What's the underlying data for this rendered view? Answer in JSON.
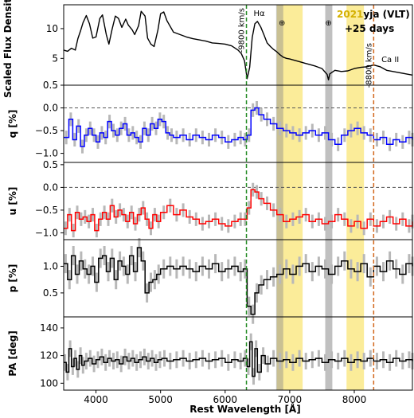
{
  "chart_data": {
    "type": "line",
    "title_prefix": "2021",
    "title_rest": "yja (VLT)",
    "subtitle": "+25 days",
    "xlabel": "Rest Wavelength [Å]",
    "xlim": [
      3500,
      8900
    ],
    "xticks": [
      4000,
      5000,
      6000,
      7000,
      8000
    ],
    "vlines": [
      {
        "x": 6330,
        "color": "#228b22",
        "label": "-9800 km/s"
      },
      {
        "x": 8300,
        "color": "#d2691e",
        "label": "-8800 km/s"
      }
    ],
    "line_labels": [
      {
        "x": 6440,
        "text": "Hα"
      },
      {
        "x": 8420,
        "text": "Ca II"
      }
    ],
    "telluric_symbols": [
      {
        "x": 6880,
        "text": "⊕"
      },
      {
        "x": 7600,
        "text": "⊕"
      }
    ],
    "bands": [
      {
        "x0": 6800,
        "x1": 7200,
        "color": "#f5d000",
        "opacity": 0.4
      },
      {
        "x0": 6790,
        "x1": 6900,
        "color": "#8c8c8c",
        "opacity": 0.45
      },
      {
        "x0": 7550,
        "x1": 7660,
        "color": "#8c8c8c",
        "opacity": 0.55
      },
      {
        "x0": 7880,
        "x1": 8150,
        "color": "#f5d000",
        "opacity": 0.4
      }
    ],
    "panels": [
      {
        "key": "flux",
        "ylabel": "Scaled Flux Density",
        "ylim": [
          0.5,
          14
        ],
        "yticks": [
          5,
          10
        ],
        "yticklabels": [
          "5",
          "10"
        ],
        "color": "#000000",
        "errbars": false,
        "x": [
          3500,
          3560,
          3620,
          3680,
          3720,
          3760,
          3800,
          3850,
          3900,
          3950,
          4000,
          4060,
          4100,
          4160,
          4200,
          4250,
          4300,
          4350,
          4400,
          4460,
          4500,
          4560,
          4600,
          4660,
          4700,
          4760,
          4800,
          4850,
          4900,
          4960,
          5000,
          5050,
          5100,
          5200,
          5300,
          5400,
          5500,
          5600,
          5700,
          5800,
          5900,
          6000,
          6100,
          6200,
          6250,
          6300,
          6340,
          6380,
          6420,
          6460,
          6500,
          6550,
          6600,
          6650,
          6700,
          6750,
          6800,
          6850,
          6900,
          6950,
          7000,
          7100,
          7200,
          7300,
          7400,
          7500,
          7580,
          7600,
          7620,
          7700,
          7800,
          7900,
          8000,
          8100,
          8200,
          8300,
          8400,
          8500,
          8600,
          8700,
          8800,
          8900
        ],
        "y": [
          6.4,
          6.2,
          6.7,
          6.4,
          8.3,
          9.6,
          11.0,
          12.2,
          10.8,
          8.4,
          8.6,
          11.7,
          12.3,
          9.0,
          7.4,
          9.9,
          12.1,
          11.7,
          10.2,
          11.6,
          10.6,
          9.8,
          9.0,
          10.5,
          12.9,
          12.1,
          8.4,
          7.4,
          7.0,
          9.8,
          12.5,
          12.8,
          11.3,
          9.4,
          9.0,
          8.6,
          8.3,
          8.1,
          7.9,
          7.6,
          7.5,
          7.4,
          7.1,
          6.4,
          5.8,
          4.6,
          1.6,
          3.5,
          8.5,
          10.8,
          11.2,
          10.3,
          9.0,
          7.6,
          7.0,
          6.5,
          6.1,
          5.6,
          5.2,
          5.0,
          4.9,
          4.6,
          4.3,
          4.0,
          3.7,
          3.3,
          2.3,
          1.4,
          2.4,
          3.0,
          2.8,
          2.9,
          3.3,
          3.5,
          3.6,
          3.9,
          3.6,
          3.0,
          2.8,
          2.6,
          2.4,
          2.2
        ]
      },
      {
        "key": "q",
        "ylabel": "q [%]",
        "ylim": [
          -1.2,
          0.5
        ],
        "yticks": [
          -1.0,
          -0.5,
          0.0,
          0.5
        ],
        "yticklabels": [
          "−1.0",
          "−0.5",
          "0.0",
          "0.5"
        ],
        "color": "#0000ff",
        "errbars": true,
        "dashed_y": 0.0,
        "x": [
          3500,
          3580,
          3640,
          3700,
          3760,
          3820,
          3880,
          3940,
          4000,
          4060,
          4120,
          4180,
          4240,
          4300,
          4360,
          4420,
          4480,
          4540,
          4600,
          4660,
          4720,
          4780,
          4840,
          4900,
          4960,
          5020,
          5080,
          5140,
          5200,
          5300,
          5400,
          5500,
          5600,
          5700,
          5800,
          5900,
          6000,
          6100,
          6200,
          6280,
          6340,
          6400,
          6460,
          6520,
          6600,
          6700,
          6800,
          6900,
          7000,
          7100,
          7200,
          7300,
          7400,
          7500,
          7600,
          7700,
          7800,
          7900,
          8000,
          8100,
          8200,
          8300,
          8400,
          8500,
          8600,
          8700,
          8800,
          8900
        ],
        "y": [
          -0.65,
          -0.25,
          -0.7,
          -0.4,
          -0.85,
          -0.6,
          -0.45,
          -0.6,
          -0.75,
          -0.55,
          -0.65,
          -0.3,
          -0.5,
          -0.6,
          -0.45,
          -0.35,
          -0.6,
          -0.55,
          -0.65,
          -0.75,
          -0.45,
          -0.6,
          -0.35,
          -0.45,
          -0.25,
          -0.3,
          -0.55,
          -0.6,
          -0.65,
          -0.6,
          -0.7,
          -0.6,
          -0.65,
          -0.7,
          -0.6,
          -0.65,
          -0.75,
          -0.7,
          -0.65,
          -0.7,
          -0.6,
          -0.05,
          0.0,
          -0.15,
          -0.25,
          -0.35,
          -0.45,
          -0.5,
          -0.55,
          -0.6,
          -0.55,
          -0.5,
          -0.6,
          -0.55,
          -0.7,
          -0.8,
          -0.6,
          -0.5,
          -0.45,
          -0.55,
          -0.6,
          -0.7,
          -0.65,
          -0.8,
          -0.7,
          -0.75,
          -0.65,
          -0.7
        ],
        "err": 0.15
      },
      {
        "key": "u",
        "ylabel": "u [%]",
        "ylim": [
          -1.15,
          0.55
        ],
        "yticks": [
          -1.0,
          -0.5,
          0.0,
          0.5
        ],
        "yticklabels": [
          "−1.0",
          "−0.5",
          "0.0",
          "0.5"
        ],
        "color": "#ff0000",
        "errbars": true,
        "dashed_y": 0.0,
        "x": [
          3500,
          3560,
          3620,
          3680,
          3740,
          3800,
          3860,
          3920,
          3980,
          4040,
          4100,
          4160,
          4220,
          4280,
          4340,
          4400,
          4460,
          4520,
          4580,
          4640,
          4700,
          4760,
          4820,
          4880,
          4940,
          5000,
          5100,
          5200,
          5300,
          5400,
          5500,
          5600,
          5700,
          5800,
          5900,
          6000,
          6100,
          6200,
          6280,
          6340,
          6400,
          6460,
          6520,
          6600,
          6700,
          6800,
          6900,
          7000,
          7100,
          7200,
          7300,
          7400,
          7500,
          7600,
          7700,
          7800,
          7900,
          8000,
          8100,
          8200,
          8300,
          8400,
          8500,
          8600,
          8700,
          8800,
          8900
        ],
        "y": [
          -0.9,
          -0.6,
          -0.95,
          -0.55,
          -0.7,
          -0.65,
          -0.75,
          -0.6,
          -0.95,
          -0.7,
          -0.55,
          -0.7,
          -0.4,
          -0.65,
          -0.5,
          -0.6,
          -0.75,
          -0.55,
          -0.8,
          -0.6,
          -0.45,
          -0.7,
          -0.9,
          -0.6,
          -0.75,
          -0.55,
          -0.4,
          -0.6,
          -0.5,
          -0.65,
          -0.7,
          -0.8,
          -0.75,
          -0.7,
          -0.8,
          -0.85,
          -0.75,
          -0.7,
          -0.7,
          -0.45,
          -0.05,
          -0.1,
          -0.25,
          -0.35,
          -0.5,
          -0.6,
          -0.75,
          -0.7,
          -0.65,
          -0.6,
          -0.75,
          -0.7,
          -0.8,
          -0.75,
          -0.6,
          -0.7,
          -0.85,
          -0.75,
          -0.9,
          -0.7,
          -0.85,
          -0.75,
          -0.65,
          -0.8,
          -0.7,
          -0.85,
          -0.75
        ],
        "err": 0.15
      },
      {
        "key": "p",
        "ylabel": "p [%]",
        "ylim": [
          0.05,
          1.5
        ],
        "yticks": [
          0.5,
          1.0
        ],
        "yticklabels": [
          "0.5",
          "1.0"
        ],
        "color": "#000000",
        "errbars": true,
        "x": [
          3500,
          3560,
          3620,
          3680,
          3740,
          3800,
          3860,
          3920,
          3980,
          4040,
          4100,
          4160,
          4220,
          4280,
          4340,
          4400,
          4460,
          4520,
          4580,
          4640,
          4700,
          4760,
          4820,
          4880,
          4940,
          5000,
          5100,
          5200,
          5300,
          5400,
          5500,
          5600,
          5700,
          5800,
          5900,
          6000,
          6100,
          6200,
          6280,
          6340,
          6400,
          6460,
          6520,
          6600,
          6700,
          6800,
          6900,
          7000,
          7100,
          7200,
          7300,
          7400,
          7500,
          7600,
          7700,
          7800,
          7900,
          8000,
          8100,
          8200,
          8300,
          8400,
          8500,
          8600,
          8700,
          8800,
          8900
        ],
        "y": [
          1.05,
          0.75,
          1.2,
          0.85,
          1.1,
          0.95,
          0.85,
          1.0,
          0.7,
          1.15,
          1.2,
          0.9,
          1.15,
          0.75,
          1.1,
          1.0,
          0.85,
          1.2,
          0.9,
          1.35,
          1.1,
          0.5,
          0.7,
          0.75,
          0.85,
          0.95,
          1.0,
          0.95,
          1.0,
          0.95,
          0.9,
          1.0,
          0.95,
          1.05,
          0.9,
          0.95,
          1.0,
          0.9,
          0.95,
          0.25,
          0.1,
          0.5,
          0.65,
          0.75,
          0.8,
          0.85,
          0.95,
          0.85,
          1.0,
          1.05,
          0.9,
          1.0,
          0.95,
          0.85,
          1.0,
          1.1,
          0.95,
          0.9,
          1.05,
          0.8,
          1.0,
          0.9,
          1.1,
          0.95,
          0.85,
          1.05,
          1.0
        ],
        "err": 0.18
      },
      {
        "key": "pa",
        "ylabel": "PA [deg]",
        "ylim": [
          95,
          148
        ],
        "yticks": [
          100,
          120,
          140
        ],
        "yticklabels": [
          "100",
          "120",
          "140"
        ],
        "color": "#000000",
        "errbars": true,
        "x": [
          3500,
          3540,
          3580,
          3620,
          3660,
          3700,
          3740,
          3780,
          3820,
          3880,
          3940,
          4000,
          4060,
          4120,
          4180,
          4240,
          4300,
          4360,
          4420,
          4480,
          4540,
          4600,
          4660,
          4720,
          4780,
          4840,
          4900,
          4960,
          5020,
          5100,
          5200,
          5300,
          5400,
          5500,
          5600,
          5700,
          5800,
          5900,
          6000,
          6100,
          6200,
          6280,
          6340,
          6380,
          6420,
          6460,
          6500,
          6560,
          6620,
          6700,
          6800,
          6900,
          7000,
          7100,
          7200,
          7300,
          7400,
          7500,
          7600,
          7700,
          7800,
          7900,
          8000,
          8100,
          8200,
          8300,
          8400,
          8500,
          8600,
          8700,
          8800,
          8900
        ],
        "y": [
          115,
          108,
          125,
          112,
          118,
          110,
          120,
          113,
          116,
          118,
          114,
          117,
          119,
          115,
          118,
          116,
          117,
          114,
          119,
          116,
          118,
          115,
          117,
          119,
          116,
          118,
          115,
          117,
          118,
          116,
          117,
          118,
          116,
          117,
          118,
          116,
          117,
          118,
          115,
          117,
          116,
          118,
          112,
          130,
          105,
          125,
          108,
          120,
          114,
          118,
          116,
          117,
          115,
          118,
          116,
          117,
          118,
          115,
          117,
          116,
          118,
          115,
          117,
          116,
          118,
          116,
          117,
          115,
          118,
          116,
          117,
          116
        ],
        "err": 6
      }
    ]
  }
}
